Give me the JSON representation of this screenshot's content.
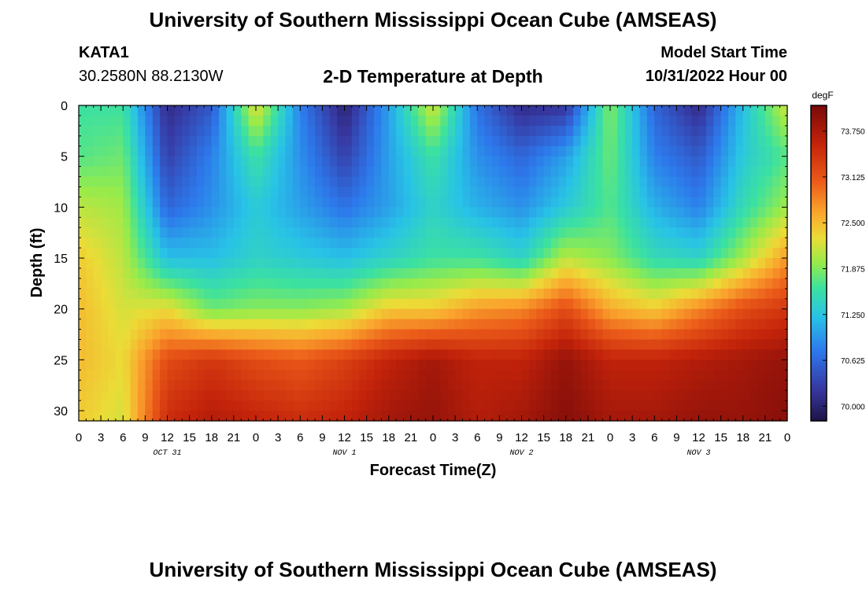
{
  "header": {
    "title_top": "University of Southern Mississippi Ocean Cube (AMSEAS)",
    "title_bottom": "University of Southern Mississippi Ocean Cube (AMSEAS)",
    "station": "KATA1",
    "coords": "30.2580N  88.2130W",
    "plot_title": "2-D Temperature at Depth",
    "model_start_label": "Model Start Time",
    "model_start_value": "10/31/2022 Hour 00"
  },
  "chart_data": {
    "type": "heatmap",
    "title": "2-D Temperature at Depth",
    "xlabel": "Forecast Time(Z)",
    "ylabel": "Depth (ft)",
    "x_range_hours": [
      0,
      96
    ],
    "y_range_ft": [
      0,
      31
    ],
    "x_tick_hours": [
      0,
      3,
      6,
      9,
      12,
      15,
      18,
      21,
      24,
      27,
      30,
      33,
      36,
      39,
      42,
      45,
      48,
      51,
      54,
      57,
      60,
      63,
      66,
      69,
      72,
      75,
      78,
      81,
      84,
      87,
      90,
      93,
      96
    ],
    "x_tick_labels": [
      "0",
      "3",
      "6",
      "9",
      "12",
      "15",
      "18",
      "21",
      "0",
      "3",
      "6",
      "9",
      "12",
      "15",
      "18",
      "21",
      "0",
      "3",
      "6",
      "9",
      "12",
      "15",
      "18",
      "21",
      "0",
      "3",
      "6",
      "9",
      "12",
      "15",
      "18",
      "21",
      "0"
    ],
    "y_ticks": [
      0,
      5,
      10,
      15,
      20,
      25,
      30
    ],
    "y_tick_labels": [
      "0",
      "5",
      "10",
      "15",
      "20",
      "25",
      "30"
    ],
    "date_labels": [
      {
        "label": "OCT 31",
        "hour": 12
      },
      {
        "label": "NOV 1",
        "hour": 36
      },
      {
        "label": "NOV 2",
        "hour": 60
      },
      {
        "label": "NOV 3",
        "hour": 84
      }
    ],
    "colorbar": {
      "unit": "degF",
      "min": 69.8,
      "max": 74.1,
      "ticks": [
        70.0,
        70.625,
        71.25,
        71.875,
        72.5,
        73.125,
        73.75
      ],
      "tick_labels": [
        "70.000",
        "70.625",
        "71.250",
        "71.875",
        "72.500",
        "73.125",
        "73.750"
      ]
    },
    "temperature_grid": {
      "x_hours": [
        0,
        6,
        12,
        18,
        24,
        30,
        36,
        42,
        48,
        54,
        60,
        66,
        72,
        78,
        84,
        90,
        96
      ],
      "y_depth_ft": [
        0,
        5,
        10,
        15,
        20,
        25,
        31
      ],
      "values_degF": [
        [
          71.6,
          71.6,
          70.1,
          70.5,
          72.3,
          70.8,
          70.0,
          71.0,
          72.2,
          70.7,
          70.1,
          70.2,
          71.9,
          70.6,
          70.1,
          71.2,
          72.2
        ],
        [
          71.7,
          71.8,
          70.3,
          70.8,
          71.6,
          70.9,
          70.3,
          71.0,
          71.6,
          70.9,
          70.6,
          71.0,
          71.8,
          70.8,
          70.5,
          71.3,
          71.7
        ],
        [
          72.1,
          72.0,
          70.6,
          70.9,
          71.3,
          71.0,
          70.7,
          71.0,
          71.4,
          71.1,
          70.9,
          71.3,
          71.7,
          71.1,
          70.8,
          71.5,
          72.0
        ],
        [
          72.4,
          72.1,
          71.2,
          71.2,
          71.4,
          71.3,
          71.2,
          71.4,
          71.6,
          71.6,
          71.4,
          72.1,
          71.9,
          71.5,
          71.4,
          72.0,
          72.7
        ],
        [
          72.5,
          72.2,
          72.3,
          71.8,
          71.9,
          71.9,
          72.0,
          72.4,
          72.4,
          72.7,
          72.8,
          73.2,
          72.6,
          72.4,
          72.8,
          73.2,
          73.4
        ],
        [
          72.5,
          72.3,
          73.2,
          73.4,
          73.2,
          73.1,
          73.3,
          73.6,
          73.8,
          73.6,
          73.6,
          73.9,
          73.6,
          73.6,
          73.7,
          73.8,
          73.9
        ],
        [
          72.4,
          72.2,
          73.5,
          73.7,
          73.6,
          73.5,
          73.6,
          73.8,
          73.9,
          73.7,
          73.8,
          74.0,
          73.8,
          73.8,
          73.9,
          73.9,
          74.0
        ]
      ]
    }
  }
}
